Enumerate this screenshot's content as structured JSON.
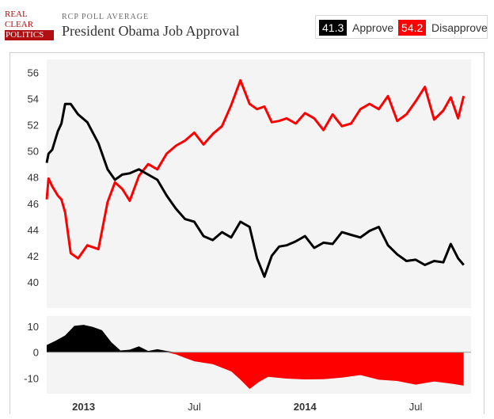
{
  "header": {
    "logo_lines": [
      "REAL",
      "CLEAR",
      "POLITICS"
    ],
    "kicker": "RCP POLL AVERAGE",
    "title": "President Obama Job Approval"
  },
  "legend": {
    "approve_value": "41.3",
    "approve_label": "Approve",
    "disapprove_value": "54.2",
    "disapprove_label": "Disapprove"
  },
  "colors": {
    "approve": "#000000",
    "disapprove": "#ff0000",
    "plot_bg": "#f4f4f4"
  },
  "chart_data": [
    {
      "type": "line",
      "title": "",
      "xlabel": "",
      "ylabel": "",
      "ylim": [
        38,
        57
      ],
      "y_ticks": [
        "40",
        "42",
        "44",
        "46",
        "48",
        "50",
        "52",
        "54",
        "56"
      ],
      "x_ticks": [
        "2013",
        "Jul",
        "2014",
        "Jul"
      ],
      "x_tick_bold": [
        true,
        false,
        true,
        false
      ],
      "x_tick_positions_in_months": [
        0,
        6,
        12,
        18
      ],
      "x_range_months": [
        -2,
        21
      ],
      "grid": false,
      "series": [
        {
          "name": "Approve",
          "color": "#000000",
          "x_months": [
            -2,
            -1.9,
            -1.7,
            -1.4,
            -1.2,
            -1,
            -0.7,
            -0.3,
            0.2,
            0.8,
            1.3,
            1.7,
            2.1,
            2.5,
            3,
            3.5,
            4,
            4.5,
            5,
            5.5,
            6,
            6.5,
            7,
            7.5,
            8,
            8.5,
            9,
            9.4,
            9.8,
            10.2,
            10.6,
            11,
            11.5,
            12,
            12.5,
            13,
            13.5,
            14,
            14.5,
            15,
            15.5,
            16,
            16.5,
            17,
            17.5,
            18,
            18.5,
            19,
            19.5,
            19.9,
            20.3,
            20.6
          ],
          "values": [
            49.1,
            49.8,
            50.1,
            51.5,
            52.1,
            53.6,
            53.6,
            52.8,
            52.2,
            50.6,
            48.6,
            47.8,
            48.2,
            48.3,
            48.6,
            48.2,
            47.8,
            46.6,
            45.6,
            44.8,
            44.6,
            43.5,
            43.2,
            43.8,
            43.4,
            44.6,
            44.2,
            41.8,
            40.4,
            42,
            42.7,
            42.8,
            43.1,
            43.5,
            42.6,
            43,
            42.9,
            43.8,
            43.6,
            43.4,
            43.9,
            44.2,
            42.8,
            42.1,
            41.6,
            41.7,
            41.3,
            41.6,
            41.5,
            42.9,
            41.8,
            41.3
          ]
        },
        {
          "name": "Disapprove",
          "color": "#ff0000",
          "x_months": [
            -2,
            -1.9,
            -1.7,
            -1.4,
            -1.2,
            -1,
            -0.7,
            -0.3,
            0.2,
            0.8,
            1.3,
            1.7,
            2.1,
            2.5,
            3,
            3.5,
            4,
            4.5,
            5,
            5.5,
            6,
            6.5,
            7,
            7.5,
            8,
            8.5,
            9,
            9.4,
            9.8,
            10.2,
            10.6,
            11,
            11.5,
            12,
            12.5,
            13,
            13.5,
            14,
            14.5,
            15,
            15.5,
            16,
            16.5,
            17,
            17.5,
            18,
            18.5,
            19,
            19.5,
            19.9,
            20.3,
            20.6
          ],
          "values": [
            46.3,
            47.9,
            47.3,
            46.6,
            46.3,
            45.3,
            42.2,
            41.8,
            42.8,
            42.5,
            46.1,
            47.6,
            47.1,
            46.2,
            48.1,
            49,
            48.6,
            49.8,
            50.4,
            50.8,
            51.4,
            50.5,
            51.3,
            51.9,
            53.5,
            55.4,
            53.6,
            53.2,
            53.4,
            52.2,
            52.3,
            52.5,
            52.1,
            52.9,
            52.5,
            51.6,
            52.8,
            51.9,
            52.1,
            53.2,
            53.6,
            53.2,
            54.2,
            52.3,
            52.8,
            53.8,
            54.9,
            52.4,
            53.1,
            54.1,
            52.5,
            54.2
          ]
        }
      ]
    },
    {
      "type": "area",
      "title": "",
      "xlabel": "",
      "ylabel": "",
      "ylim": [
        -16,
        14
      ],
      "y_ticks": [
        "10",
        "0",
        "-10"
      ],
      "x_months": [
        -2,
        -1.5,
        -1,
        -0.5,
        0,
        0.5,
        1,
        1.5,
        2,
        2.5,
        3,
        3.5,
        4,
        4.5,
        5,
        5.5,
        6,
        7,
        8,
        8.5,
        9,
        9.5,
        10,
        11,
        12,
        13,
        14,
        15,
        16,
        17,
        18,
        19,
        20,
        20.6
      ],
      "values": [
        2.8,
        4.5,
        6.5,
        10.2,
        10.6,
        9.8,
        8.5,
        3.9,
        0.7,
        1,
        2.3,
        0.5,
        1.2,
        0.5,
        -0.8,
        -2.2,
        -3.5,
        -4.6,
        -7.4,
        -10.6,
        -14.2,
        -11.5,
        -9.5,
        -10.2,
        -10.5,
        -10.4,
        -9.8,
        -8.8,
        -10.6,
        -11.1,
        -12.5,
        -11.3,
        -12.2,
        -12.9
      ],
      "positive_color": "#000000",
      "negative_color": "#ff0000"
    }
  ]
}
